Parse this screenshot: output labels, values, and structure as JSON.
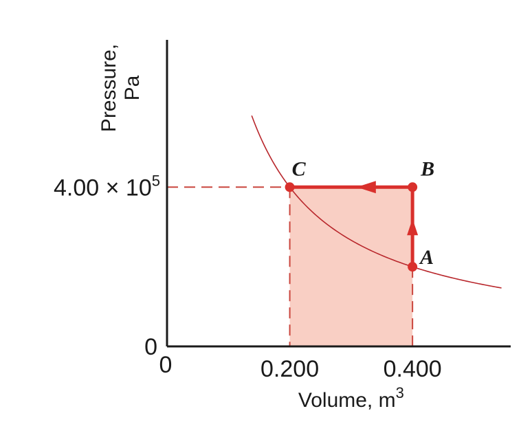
{
  "chart_data": {
    "type": "line",
    "xlabel": "Volume, m",
    "xlabel_superscript": "3",
    "ylabel_line1": "Pressure,",
    "ylabel_line2": "Pa",
    "x_ticks": [
      {
        "value": 0,
        "label": "0"
      },
      {
        "value": 0.2,
        "label": "0.200"
      },
      {
        "value": 0.4,
        "label": "0.400"
      }
    ],
    "y_ticks": [
      {
        "value": 0,
        "label": "0"
      },
      {
        "value": 400000,
        "label": "4.00 × 10",
        "superscript": "5"
      }
    ],
    "xlim": [
      0,
      0.56
    ],
    "ylim": [
      0,
      770000
    ],
    "isotherm": {
      "pv_constant": 80000,
      "x_range": [
        0.138,
        0.545
      ]
    },
    "points": [
      {
        "label": "A",
        "x": 0.4,
        "y": 200000
      },
      {
        "label": "B",
        "x": 0.4,
        "y": 400000
      },
      {
        "label": "C",
        "x": 0.2,
        "y": 400000
      }
    ],
    "path": [
      "A",
      "B",
      "C"
    ],
    "shaded_region": {
      "x": [
        0.2,
        0.4
      ],
      "y": [
        0,
        400000
      ]
    },
    "colors": {
      "path": "#d9302c",
      "curve": "#b8262b",
      "shade": "#f9cfc4",
      "dashed": "#c9453d",
      "axis": "#1a1a1a"
    }
  }
}
